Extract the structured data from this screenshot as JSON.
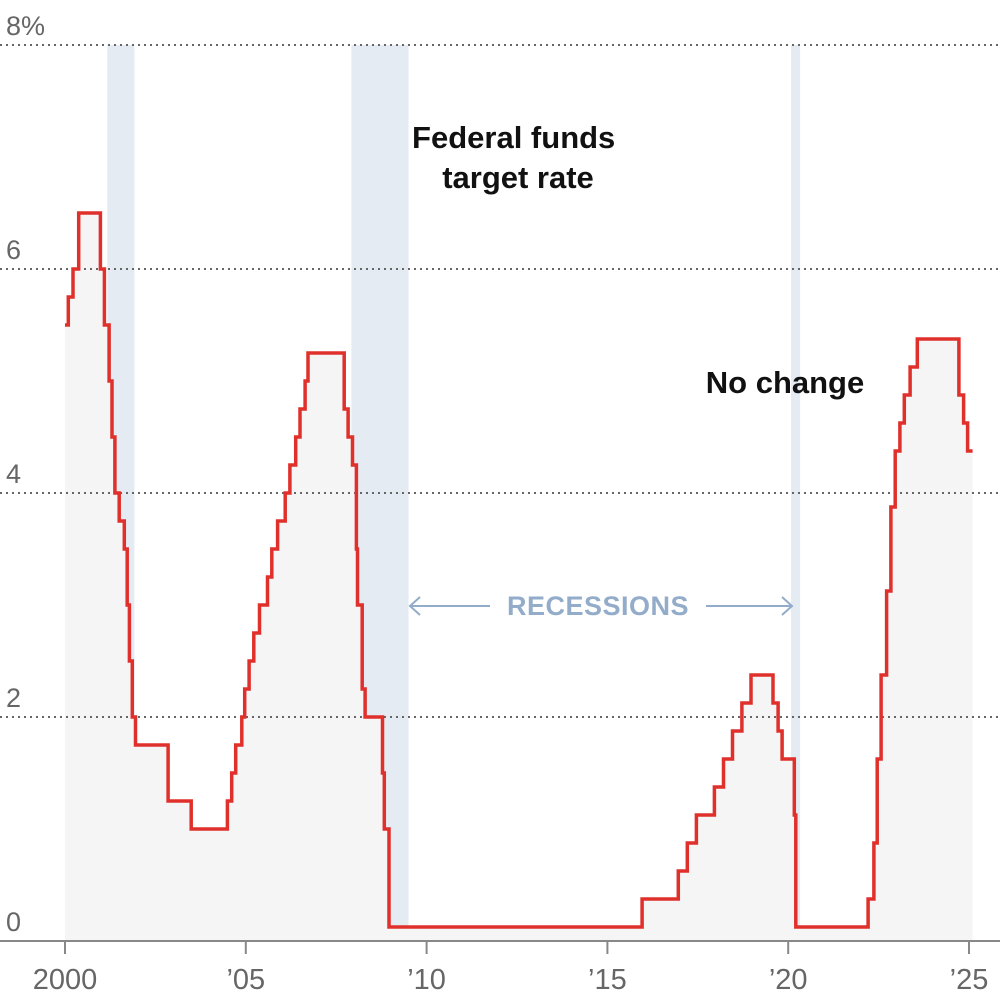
{
  "chart_data": {
    "type": "line",
    "step": true,
    "title": "",
    "xlabel": "",
    "ylabel": "",
    "ylim": [
      0,
      8
    ],
    "xlim": [
      2000,
      2025.1
    ],
    "y_ticks": [
      {
        "value": 8,
        "label": "8%"
      },
      {
        "value": 6,
        "label": "6"
      },
      {
        "value": 4,
        "label": "4"
      },
      {
        "value": 2,
        "label": "2"
      },
      {
        "value": 0,
        "label": "0"
      }
    ],
    "x_ticks": [
      {
        "value": 2000,
        "label": "2000"
      },
      {
        "value": 2005,
        "label": "’05"
      },
      {
        "value": 2010,
        "label": "’10"
      },
      {
        "value": 2015,
        "label": "’15"
      },
      {
        "value": 2020,
        "label": "’20"
      },
      {
        "value": 2025,
        "label": "’25"
      }
    ],
    "grid": "horizontal-dotted",
    "series": [
      {
        "label": "Federal funds target rate",
        "color": "#e0302b",
        "fill": "#f5f5f5",
        "points": [
          [
            2000.0,
            5.5
          ],
          [
            2000.09,
            5.75
          ],
          [
            2000.22,
            6.0
          ],
          [
            2000.38,
            6.5
          ],
          [
            2000.98,
            6.0
          ],
          [
            2001.09,
            5.5
          ],
          [
            2001.22,
            5.0
          ],
          [
            2001.3,
            4.5
          ],
          [
            2001.38,
            4.0
          ],
          [
            2001.5,
            3.75
          ],
          [
            2001.64,
            3.5
          ],
          [
            2001.72,
            3.0
          ],
          [
            2001.78,
            2.5
          ],
          [
            2001.86,
            2.0
          ],
          [
            2001.95,
            1.75
          ],
          [
            2002.85,
            1.25
          ],
          [
            2003.49,
            1.0
          ],
          [
            2004.49,
            1.25
          ],
          [
            2004.61,
            1.5
          ],
          [
            2004.72,
            1.75
          ],
          [
            2004.89,
            2.0
          ],
          [
            2004.97,
            2.25
          ],
          [
            2005.09,
            2.5
          ],
          [
            2005.22,
            2.75
          ],
          [
            2005.38,
            3.0
          ],
          [
            2005.6,
            3.25
          ],
          [
            2005.72,
            3.5
          ],
          [
            2005.88,
            3.75
          ],
          [
            2006.09,
            4.0
          ],
          [
            2006.22,
            4.25
          ],
          [
            2006.38,
            4.5
          ],
          [
            2006.5,
            4.75
          ],
          [
            2006.64,
            5.0
          ],
          [
            2006.72,
            5.25
          ],
          [
            2007.72,
            4.75
          ],
          [
            2007.83,
            4.5
          ],
          [
            2007.95,
            4.25
          ],
          [
            2008.06,
            3.5
          ],
          [
            2008.09,
            3.0
          ],
          [
            2008.22,
            2.25
          ],
          [
            2008.3,
            2.0
          ],
          [
            2008.78,
            1.5
          ],
          [
            2008.83,
            1.0
          ],
          [
            2008.96,
            0.125
          ],
          [
            2015.96,
            0.375
          ],
          [
            2016.96,
            0.625
          ],
          [
            2017.21,
            0.875
          ],
          [
            2017.46,
            1.125
          ],
          [
            2017.96,
            1.375
          ],
          [
            2018.21,
            1.625
          ],
          [
            2018.46,
            1.875
          ],
          [
            2018.72,
            2.125
          ],
          [
            2018.97,
            2.375
          ],
          [
            2019.58,
            2.125
          ],
          [
            2019.72,
            1.875
          ],
          [
            2019.83,
            1.625
          ],
          [
            2020.17,
            1.125
          ],
          [
            2020.21,
            0.125
          ],
          [
            2022.21,
            0.375
          ],
          [
            2022.37,
            0.875
          ],
          [
            2022.46,
            1.625
          ],
          [
            2022.57,
            2.375
          ],
          [
            2022.72,
            3.125
          ],
          [
            2022.84,
            3.875
          ],
          [
            2022.96,
            4.375
          ],
          [
            2023.09,
            4.625
          ],
          [
            2023.21,
            4.875
          ],
          [
            2023.37,
            5.125
          ],
          [
            2023.57,
            5.375
          ],
          [
            2024.72,
            4.875
          ],
          [
            2024.85,
            4.625
          ],
          [
            2024.96,
            4.375
          ],
          [
            2025.1,
            4.375
          ]
        ]
      }
    ],
    "recessions": [
      [
        2001.17,
        2001.92
      ],
      [
        2007.92,
        2009.5
      ],
      [
        2020.08,
        2020.33
      ]
    ],
    "annotations": {
      "series_label": [
        "Federal funds",
        "target rate"
      ],
      "note": "No change",
      "recessions_label": "RECESSIONS"
    },
    "colors": {
      "line": "#e0302b",
      "area": "#f5f5f5",
      "recession": "#e4ebf3",
      "grid": "#666666",
      "recession_text": "#93acc9"
    }
  }
}
